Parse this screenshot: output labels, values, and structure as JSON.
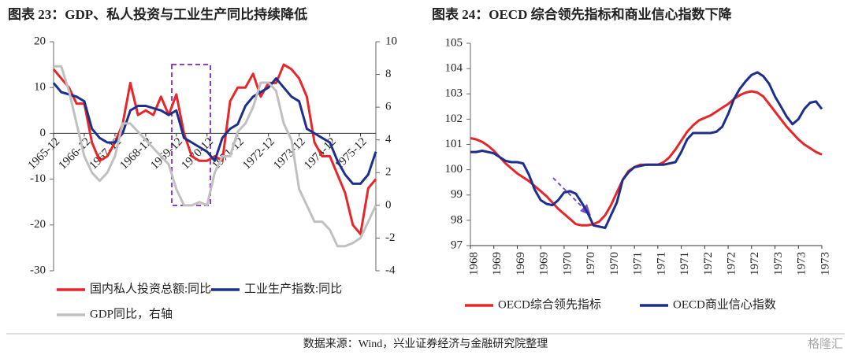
{
  "chart_data": [
    {
      "type": "line",
      "title": "图表 23：GDP、私人投资与工业生产同比持续降低",
      "categories": [
        "1965-12",
        null,
        null,
        null,
        "1966-12",
        null,
        null,
        null,
        "1967-12",
        null,
        null,
        null,
        "1968-12",
        null,
        null,
        null,
        "1969-12",
        null,
        null,
        null,
        "1970-12",
        null,
        null,
        null,
        "1971-12",
        null,
        null,
        null,
        "1972-12",
        null,
        null,
        null,
        "1973-12",
        null,
        null,
        null,
        "1974-12",
        null,
        null,
        null,
        "1975-12",
        null,
        null
      ],
      "ylim": [
        -30,
        20
      ],
      "yticks": [
        -30,
        -20,
        -10,
        0,
        10,
        20
      ],
      "y2lim": [
        -4,
        10
      ],
      "y2ticks": [
        -4,
        -2,
        0,
        2,
        4,
        6,
        8,
        10
      ],
      "series": [
        {
          "name": "国内私人投资总额:同比",
          "color": "#e8262a",
          "values": [
            14,
            12,
            10,
            6.5,
            6.5,
            -2,
            -6,
            -5,
            -2,
            2,
            11,
            4,
            5,
            4,
            8,
            4,
            8.5,
            0,
            -5,
            -6,
            -6,
            -5,
            -6,
            7,
            10,
            10,
            13,
            8,
            11,
            11,
            15,
            14,
            12,
            8,
            -2,
            -5,
            -5,
            -9,
            -13,
            -20,
            -22,
            -12,
            -10
          ]
        },
        {
          "name": "工业生产指数:同比",
          "color": "#1c2f8c",
          "values": [
            11,
            9,
            8.5,
            8,
            7,
            1,
            -1,
            -2,
            -2,
            0,
            5,
            6,
            6,
            5.5,
            5,
            4,
            5,
            -1,
            -2,
            -3,
            -4,
            -6,
            -1,
            1,
            2,
            6,
            8,
            9,
            10,
            12,
            10,
            8,
            7,
            1,
            0,
            -1,
            -2,
            -6,
            -9,
            -11,
            -11,
            -9,
            -4
          ]
        },
        {
          "name": "GDP同比，右轴",
          "color": "#c0c0c0",
          "axis": "y2",
          "values": [
            8.5,
            8.5,
            7,
            5,
            3,
            2,
            1.5,
            2,
            3,
            5,
            5,
            4.5,
            4,
            3.5,
            3,
            2.5,
            1,
            0,
            0,
            0.2,
            0,
            2,
            3,
            3,
            4.5,
            5,
            6,
            7.5,
            7.5,
            7,
            5,
            4,
            1,
            0,
            -1,
            -1,
            -1.5,
            -2.5,
            -2.5,
            -2.3,
            -2,
            -1,
            0
          ]
        }
      ]
    },
    {
      "type": "line",
      "title": "图表 24：OECD 综合领先指标和商业信心指数下降",
      "categories": [
        "1968",
        null,
        null,
        null,
        "1969",
        null,
        null,
        null,
        "1969",
        null,
        null,
        null,
        "1969",
        null,
        null,
        null,
        "1970",
        null,
        null,
        null,
        "1970",
        null,
        null,
        null,
        "1970",
        null,
        null,
        null,
        "1971",
        null,
        null,
        null,
        "1971",
        null,
        null,
        null,
        "1971",
        null,
        null,
        null,
        "1972",
        null,
        null,
        null,
        "1972",
        null,
        null,
        null,
        "1972",
        null,
        null,
        null,
        "1973",
        null,
        null,
        null,
        "1973",
        null,
        null,
        null,
        "1973"
      ],
      "ylim": [
        97,
        105
      ],
      "yticks": [
        97,
        98,
        99,
        100,
        101,
        102,
        103,
        104,
        105
      ],
      "series": [
        {
          "name": "OECD综合领先指标",
          "color": "#e8262a",
          "values": [
            101.25,
            101.2,
            101.1,
            100.95,
            100.75,
            100.5,
            100.25,
            100.05,
            99.85,
            99.7,
            99.55,
            99.35,
            99.15,
            98.95,
            98.7,
            98.45,
            98.25,
            98.05,
            97.85,
            97.8,
            97.8,
            97.85,
            97.95,
            98.2,
            98.6,
            99.1,
            99.6,
            99.95,
            100.1,
            100.2,
            100.2,
            100.2,
            100.2,
            100.3,
            100.5,
            100.8,
            101.15,
            101.5,
            101.75,
            101.95,
            102.05,
            102.15,
            102.3,
            102.45,
            102.6,
            102.8,
            102.95,
            103.05,
            103.1,
            103.05,
            102.9,
            102.6,
            102.3,
            102.0,
            101.7,
            101.45,
            101.2,
            101.0,
            100.85,
            100.7,
            100.6
          ]
        },
        {
          "name": "OECD商业信心指数",
          "color": "#1c2f8c",
          "values": [
            100.7,
            100.7,
            100.75,
            100.7,
            100.65,
            100.5,
            100.35,
            100.3,
            100.3,
            100.25,
            99.8,
            99.2,
            98.8,
            98.65,
            98.6,
            98.8,
            99.1,
            99.15,
            99.05,
            98.7,
            98.3,
            97.8,
            97.75,
            97.7,
            98.2,
            98.7,
            99.6,
            99.9,
            100.1,
            100.15,
            100.2,
            100.2,
            100.2,
            100.2,
            100.25,
            100.3,
            100.7,
            101.2,
            101.45,
            101.45,
            101.45,
            101.45,
            101.5,
            101.7,
            102.2,
            102.8,
            103.2,
            103.5,
            103.75,
            103.85,
            103.7,
            103.4,
            102.9,
            102.5,
            102.1,
            101.8,
            102.0,
            102.4,
            102.65,
            102.7,
            102.4
          ]
        }
      ]
    }
  ],
  "source": "数据来源：Wind，兴业证券经济与金融研究院整理",
  "watermark": "格隆汇"
}
